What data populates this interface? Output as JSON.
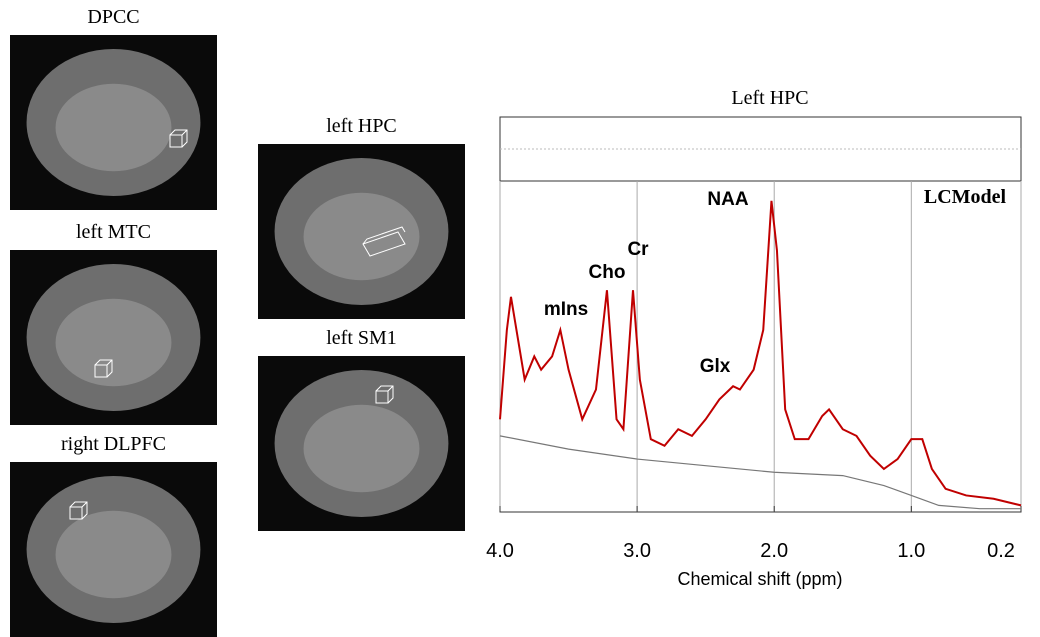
{
  "panels": [
    {
      "label": "DPCC"
    },
    {
      "label": "left MTC"
    },
    {
      "label": "right DLPFC"
    },
    {
      "label": "left HPC"
    },
    {
      "label": "left SM1"
    }
  ],
  "chart_data": {
    "type": "line",
    "title": "Left HPC",
    "x_label": "Chemical shift (ppm)",
    "annotations": [
      "NAA",
      "Cr",
      "Cho",
      "mIns",
      "Glx",
      "LCModel"
    ],
    "xlim": [
      4.0,
      0.2
    ],
    "xticks": [
      {
        "value": 4.0,
        "label": "4.0"
      },
      {
        "value": 3.0,
        "label": "3.0"
      },
      {
        "value": 2.0,
        "label": "2.0"
      },
      {
        "value": 1.0,
        "label": "1.0"
      },
      0.2
    ],
    "ylim": [
      0,
      100
    ],
    "grid": true,
    "series": [
      {
        "color": "#c00000",
        "x": [
          4.0,
          3.95,
          3.92,
          3.88,
          3.82,
          3.75,
          3.7,
          3.62,
          3.56,
          3.5,
          3.4,
          3.3,
          3.22,
          3.15,
          3.1,
          3.03,
          2.98,
          2.9,
          2.8,
          2.7,
          2.6,
          2.5,
          2.4,
          2.3,
          2.25,
          2.15,
          2.08,
          2.02,
          1.98,
          1.92,
          1.85,
          1.75,
          1.65,
          1.6,
          1.5,
          1.4,
          1.3,
          1.2,
          1.1,
          1.0,
          0.92,
          0.85,
          0.75,
          0.6,
          0.4,
          0.2
        ],
        "values": [
          28,
          55,
          65,
          55,
          40,
          47,
          43,
          47,
          55,
          43,
          28,
          37,
          67,
          28,
          25,
          67,
          40,
          22,
          20,
          25,
          23,
          28,
          34,
          38,
          37,
          43,
          55,
          94,
          79,
          31,
          22,
          22,
          29,
          31,
          25,
          23,
          17,
          13,
          16,
          22,
          22,
          13,
          7,
          5,
          4,
          2
        ]
      },
      {
        "color": "#777777",
        "x": [
          4.0,
          3.5,
          3.0,
          2.5,
          2.0,
          1.5,
          1.2,
          1.0,
          0.8,
          0.5,
          0.2
        ],
        "values": [
          23,
          19,
          16,
          14,
          12,
          11,
          8,
          5,
          2,
          1,
          1
        ]
      }
    ]
  }
}
